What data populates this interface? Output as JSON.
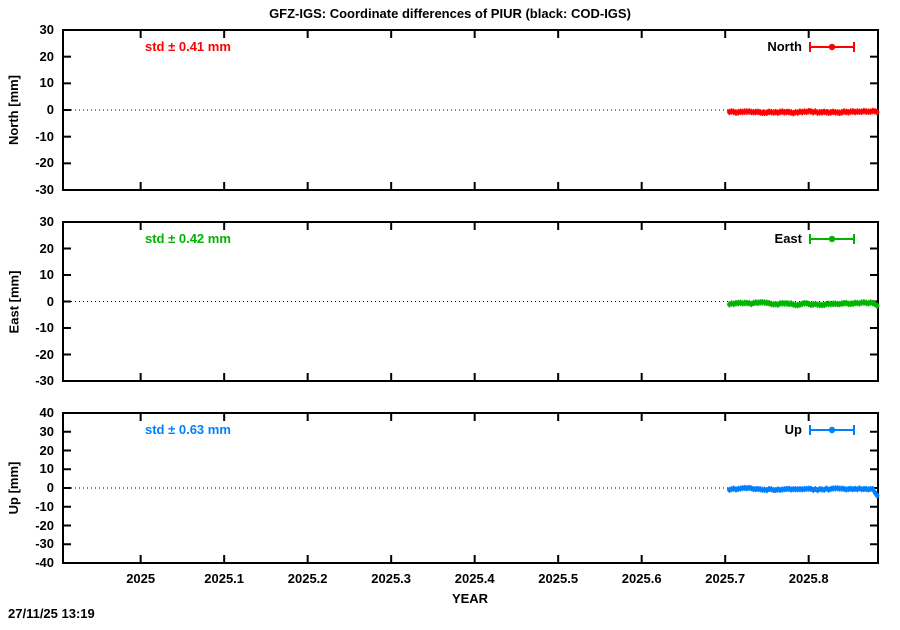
{
  "title": "GFZ-IGS: Coordinate differences of PIUR (black: COD-IGS)",
  "footer": {
    "timestamp": "27/11/25 13:19"
  },
  "chart_data": {
    "type": "scatter",
    "title": "GFZ-IGS: Coordinate differences of PIUR (black: COD-IGS)",
    "xlabel": "YEAR",
    "xlim": [
      2024.907,
      2025.883
    ],
    "x_ticks": [
      2025,
      2025.1,
      2025.2,
      2025.3,
      2025.4,
      2025.5,
      2025.6,
      2025.7,
      2025.8
    ],
    "grid": "zero-line-dotted-only",
    "legend_position": "top-right-inside",
    "panels": [
      {
        "id": "north",
        "ylabel": "North [mm]",
        "ylim": [
          -30,
          30
        ],
        "y_ticks": [
          30,
          20,
          10,
          0,
          -10,
          -20,
          -30
        ],
        "std_label": "std ± 0.41 mm",
        "std_value_mm": 0.41,
        "legend_label": "North",
        "color": "#ff0000",
        "series_summary": {
          "style": "daily points with vertical error bars",
          "x_start": 2025.705,
          "x_end": 2025.882,
          "n_points": 68,
          "mean_mm": -0.8,
          "scatter_mm": 0.41,
          "errorbar_halflength_mm": 1.2,
          "end_dip_mm": 0
        }
      },
      {
        "id": "east",
        "ylabel": "East [mm]",
        "ylim": [
          -30,
          30
        ],
        "y_ticks": [
          30,
          20,
          10,
          0,
          -10,
          -20,
          -30
        ],
        "std_label": "std ± 0.42 mm",
        "std_value_mm": 0.42,
        "legend_label": "East",
        "color": "#00b400",
        "series_summary": {
          "style": "daily points with vertical error bars",
          "x_start": 2025.705,
          "x_end": 2025.882,
          "n_points": 68,
          "mean_mm": -0.8,
          "scatter_mm": 0.42,
          "errorbar_halflength_mm": 1.2,
          "end_dip_mm": -0.8
        }
      },
      {
        "id": "up",
        "ylabel": "Up [mm]",
        "ylim": [
          -40,
          40
        ],
        "y_ticks": [
          40,
          30,
          20,
          10,
          0,
          -10,
          -20,
          -30,
          -40
        ],
        "std_label": "std ± 0.63 mm",
        "std_value_mm": 0.63,
        "legend_label": "Up",
        "color": "#0080ff",
        "series_summary": {
          "style": "daily points with vertical error bars",
          "x_start": 2025.705,
          "x_end": 2025.882,
          "n_points": 68,
          "mean_mm": -0.7,
          "scatter_mm": 0.63,
          "errorbar_halflength_mm": 1.6,
          "end_dip_mm": -3.0
        }
      }
    ]
  },
  "layout_text": {
    "xlabel": "YEAR"
  }
}
